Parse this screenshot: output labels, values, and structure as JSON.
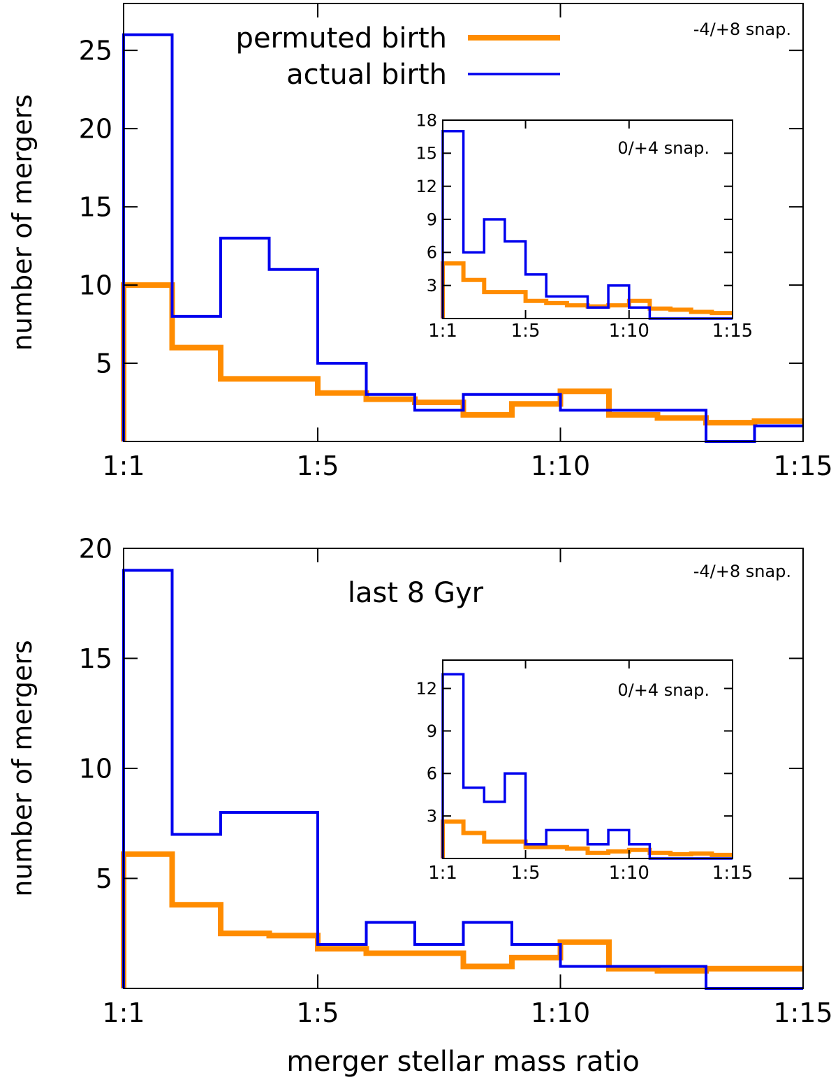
{
  "colors": {
    "permuted": "#ff8c00",
    "actual": "#0000ee",
    "axis": "#000000"
  },
  "legend": {
    "permuted_label": "permuted birth",
    "actual_label": "actual birth",
    "placement": "top-center"
  },
  "shared_xlabel": "merger stellar mass ratio",
  "chart_data": [
    {
      "type": "histogram",
      "xlabel": "",
      "ylabel": "number of mergers",
      "annotation": "-4/+8 snap.",
      "xlim": [
        1,
        15
      ],
      "ylim": [
        0,
        28
      ],
      "xticks": [
        {
          "v": 1,
          "label": "1:1"
        },
        {
          "v": 5,
          "label": "1:5"
        },
        {
          "v": 10,
          "label": "1:10"
        },
        {
          "v": 15,
          "label": "1:15"
        }
      ],
      "yticks": [
        {
          "v": 5,
          "label": "5"
        },
        {
          "v": 10,
          "label": "10"
        },
        {
          "v": 15,
          "label": "15"
        },
        {
          "v": 20,
          "label": "20"
        },
        {
          "v": 25,
          "label": "25"
        }
      ],
      "bin_edges": [
        1,
        2,
        3,
        4,
        5,
        6,
        7,
        8,
        9,
        10,
        11,
        12,
        13,
        14,
        15
      ],
      "series": [
        {
          "name": "actual birth",
          "values": [
            26,
            8,
            13,
            11,
            5,
            3,
            2,
            3,
            3,
            2,
            2,
            2,
            0,
            1
          ]
        },
        {
          "name": "permuted birth",
          "values": [
            10,
            6,
            4,
            4,
            3.1,
            2.7,
            2.5,
            1.7,
            2.4,
            3.2,
            1.7,
            1.5,
            1.2,
            1.3
          ]
        }
      ],
      "inset": {
        "annotation": "0/+4 snap.",
        "xlim": [
          1,
          15
        ],
        "ylim": [
          0,
          18
        ],
        "xticks": [
          {
            "v": 1,
            "label": "1:1"
          },
          {
            "v": 5,
            "label": "1:5"
          },
          {
            "v": 10,
            "label": "1:10"
          },
          {
            "v": 15,
            "label": "1:15"
          }
        ],
        "yticks": [
          {
            "v": 3,
            "label": "3"
          },
          {
            "v": 6,
            "label": "6"
          },
          {
            "v": 9,
            "label": "9"
          },
          {
            "v": 12,
            "label": "12"
          },
          {
            "v": 15,
            "label": "15"
          },
          {
            "v": 18,
            "label": "18"
          }
        ],
        "bin_edges": [
          1,
          2,
          3,
          4,
          5,
          6,
          7,
          8,
          9,
          10,
          11,
          12,
          13,
          14,
          15
        ],
        "series": [
          {
            "name": "actual birth",
            "values": [
              17,
              6,
              9,
              7,
              4,
              2,
              2,
              1,
              3,
              1,
              0,
              0,
              0,
              0
            ]
          },
          {
            "name": "permuted birth",
            "values": [
              5,
              3.5,
              2.4,
              2.4,
              1.6,
              1.4,
              1.2,
              1.1,
              1.2,
              1.6,
              0.9,
              0.8,
              0.6,
              0.5
            ]
          }
        ]
      }
    },
    {
      "type": "histogram",
      "xlabel": "merger stellar mass ratio",
      "ylabel": "number of mergers",
      "annotation": "-4/+8 snap.",
      "title_text": "last 8 Gyr",
      "xlim": [
        1,
        15
      ],
      "ylim": [
        0,
        20
      ],
      "xticks": [
        {
          "v": 1,
          "label": "1:1"
        },
        {
          "v": 5,
          "label": "1:5"
        },
        {
          "v": 10,
          "label": "1:10"
        },
        {
          "v": 15,
          "label": "1:15"
        }
      ],
      "yticks": [
        {
          "v": 5,
          "label": "5"
        },
        {
          "v": 10,
          "label": "10"
        },
        {
          "v": 15,
          "label": "15"
        },
        {
          "v": 20,
          "label": "20"
        }
      ],
      "bin_edges": [
        1,
        2,
        3,
        4,
        5,
        6,
        7,
        8,
        9,
        10,
        11,
        12,
        13,
        14,
        15
      ],
      "series": [
        {
          "name": "actual birth",
          "values": [
            19,
            7,
            8,
            8,
            2,
            3,
            2,
            3,
            2,
            1,
            1,
            1,
            0,
            0
          ]
        },
        {
          "name": "permuted birth",
          "values": [
            6.1,
            3.8,
            2.5,
            2.4,
            1.8,
            1.6,
            1.6,
            1.0,
            1.4,
            2.1,
            0.9,
            0.8,
            0.9,
            0.9
          ]
        }
      ],
      "inset": {
        "annotation": "0/+4 snap.",
        "xlim": [
          1,
          15
        ],
        "ylim": [
          0,
          14
        ],
        "xticks": [
          {
            "v": 1,
            "label": "1:1"
          },
          {
            "v": 5,
            "label": "1:5"
          },
          {
            "v": 10,
            "label": "1:10"
          },
          {
            "v": 15,
            "label": "1:15"
          }
        ],
        "yticks": [
          {
            "v": 3,
            "label": "3"
          },
          {
            "v": 6,
            "label": "6"
          },
          {
            "v": 9,
            "label": "9"
          },
          {
            "v": 12,
            "label": "12"
          }
        ],
        "bin_edges": [
          1,
          2,
          3,
          4,
          5,
          6,
          7,
          8,
          9,
          10,
          11,
          12,
          13,
          14,
          15
        ],
        "series": [
          {
            "name": "actual birth",
            "values": [
              13,
              5,
              4,
              6,
              1,
              2,
              2,
              1,
              2,
              1,
              0,
              0,
              0,
              0
            ]
          },
          {
            "name": "permuted birth",
            "values": [
              2.6,
              1.8,
              1.2,
              1.2,
              0.8,
              0.8,
              0.7,
              0.4,
              0.5,
              0.6,
              0.4,
              0.3,
              0.35,
              0.25
            ]
          }
        ]
      }
    }
  ]
}
